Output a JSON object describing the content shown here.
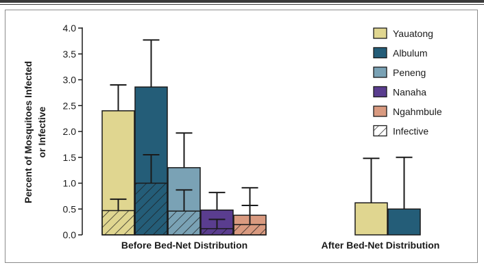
{
  "chart_data": {
    "type": "bar",
    "title": "",
    "ylabel_lines": [
      "Percent of Mosquitoes Infected",
      "or Infective"
    ],
    "ylim": [
      0,
      4.0
    ],
    "yticks": [
      "0.0",
      "0.5",
      "1.0",
      "1.5",
      "2.0",
      "2.5",
      "3.0",
      "3.5",
      "4.0"
    ],
    "categories": [
      "Before Bed-Net Distribution",
      "After Bed-Net Distribution"
    ],
    "legend_position": "top-right",
    "infective_label": "Infective",
    "series": [
      {
        "name": "Yauatong",
        "color": "#e0d690",
        "values": [
          2.4,
          0.62
        ],
        "upper": [
          2.9,
          1.48
        ],
        "infective": [
          0.47,
          null
        ],
        "infective_upper": [
          0.69,
          null
        ]
      },
      {
        "name": "Albulum",
        "color": "#245d78",
        "values": [
          2.86,
          0.5
        ],
        "upper": [
          3.77,
          1.5
        ],
        "infective": [
          1.0,
          null
        ],
        "infective_upper": [
          1.55,
          null
        ]
      },
      {
        "name": "Peneng",
        "color": "#7aa2b5",
        "values": [
          1.3,
          null
        ],
        "upper": [
          1.97,
          null
        ],
        "infective": [
          0.46,
          null
        ],
        "infective_upper": [
          0.87,
          null
        ]
      },
      {
        "name": "Nanaha",
        "color": "#5a3d8f",
        "values": [
          0.48,
          null
        ],
        "upper": [
          0.82,
          null
        ],
        "infective": [
          0.12,
          null
        ],
        "infective_upper": [
          0.3,
          null
        ]
      },
      {
        "name": "Ngahmbule",
        "color": "#d99a80",
        "values": [
          0.38,
          null
        ],
        "upper": [
          0.91,
          null
        ],
        "infective": [
          0.2,
          null
        ],
        "infective_upper": [
          0.57,
          null
        ]
      }
    ]
  }
}
